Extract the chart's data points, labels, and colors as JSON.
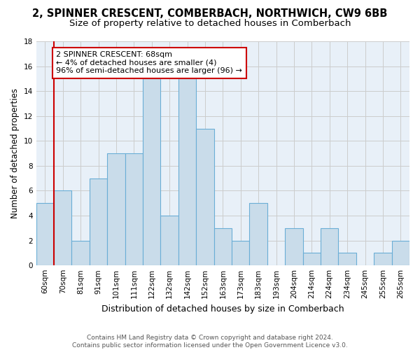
{
  "title_line1": "2, SPINNER CRESCENT, COMBERBACH, NORTHWICH, CW9 6BB",
  "title_line2": "Size of property relative to detached houses in Comberbach",
  "xlabel": "Distribution of detached houses by size in Comberbach",
  "ylabel": "Number of detached properties",
  "categories": [
    "60sqm",
    "70sqm",
    "81sqm",
    "91sqm",
    "101sqm",
    "111sqm",
    "122sqm",
    "132sqm",
    "142sqm",
    "152sqm",
    "163sqm",
    "173sqm",
    "183sqm",
    "193sqm",
    "204sqm",
    "214sqm",
    "224sqm",
    "234sqm",
    "245sqm",
    "255sqm",
    "265sqm"
  ],
  "values": [
    5,
    6,
    2,
    7,
    9,
    9,
    15,
    4,
    15,
    11,
    3,
    2,
    5,
    0,
    3,
    1,
    3,
    1,
    0,
    1,
    2
  ],
  "bar_color": "#c9dcea",
  "bar_edge_color": "#6aaed6",
  "annotation_text": "2 SPINNER CRESCENT: 68sqm\n← 4% of detached houses are smaller (4)\n96% of semi-detached houses are larger (96) →",
  "annotation_box_color": "#ffffff",
  "annotation_box_edge_color": "#cc0000",
  "red_line_x": 0.5,
  "ylim": [
    0,
    18
  ],
  "yticks": [
    0,
    2,
    4,
    6,
    8,
    10,
    12,
    14,
    16,
    18
  ],
  "grid_color": "#cccccc",
  "bg_color": "#e8f0f8",
  "footer_text": "Contains HM Land Registry data © Crown copyright and database right 2024.\nContains public sector information licensed under the Open Government Licence v3.0.",
  "title_fontsize": 10.5,
  "subtitle_fontsize": 9.5,
  "annotation_fontsize": 8.0,
  "tick_fontsize": 7.5,
  "ylabel_fontsize": 8.5,
  "xlabel_fontsize": 9,
  "footer_fontsize": 6.5
}
